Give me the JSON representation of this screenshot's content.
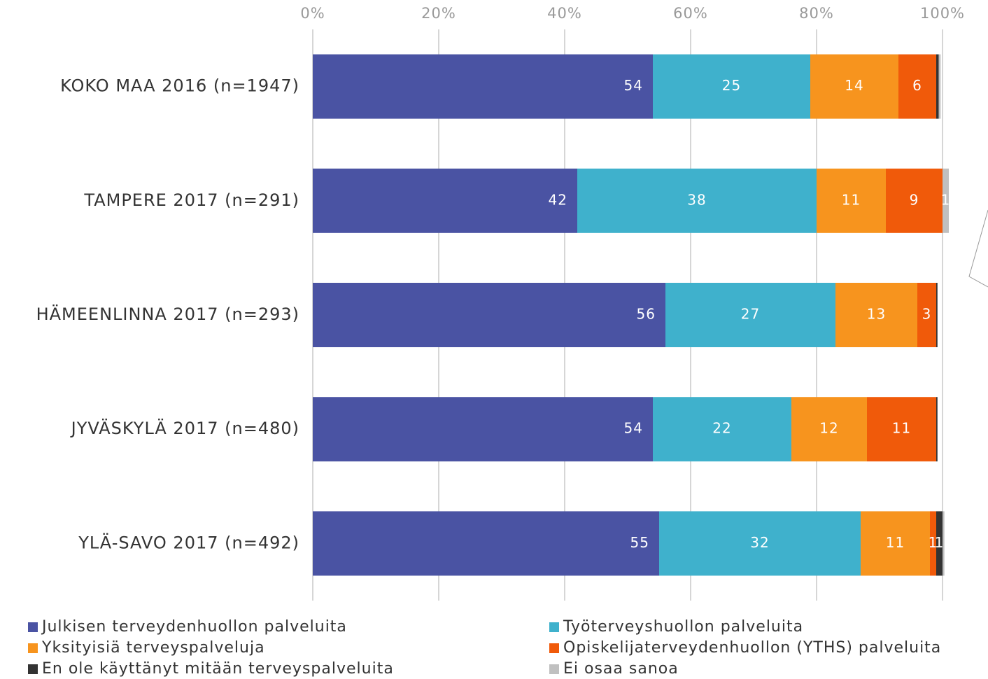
{
  "chart_data": {
    "type": "stacked_bar_horizontal",
    "categories": [
      "KOKO MAA 2016 (n=1947)",
      "TAMPERE 2017 (n=291)",
      "HÄMEENLINNA 2017 (n=293)",
      "JYVÄSKYLÄ 2017 (n=480)",
      "YLÄ-SAVO 2017 (n=492)"
    ],
    "series": [
      {
        "name": "Julkisen terveydenhuollon palveluita",
        "color": "#4a53a3",
        "values": [
          54,
          42,
          56,
          54,
          55
        ],
        "value_labels": [
          "54",
          "42",
          "56",
          "54",
          "55"
        ]
      },
      {
        "name": "Työterveyshuollon palveluita",
        "color": "#3fb1cc",
        "values": [
          25,
          38,
          27,
          22,
          32
        ],
        "value_labels": [
          "25",
          "38",
          "27",
          "22",
          "32"
        ]
      },
      {
        "name": "Yksityisiä terveyspalveluja",
        "color": "#f7941e",
        "values": [
          14,
          11,
          13,
          12,
          11
        ],
        "value_labels": [
          "14",
          "11",
          "13",
          "12",
          "11"
        ]
      },
      {
        "name": "Opiskelijaterveydenhuollon (YTHS) palveluita",
        "color": "#f05a0a",
        "values": [
          6,
          9,
          3,
          11,
          1
        ],
        "value_labels": [
          "6",
          "9",
          "3",
          "11",
          "1"
        ]
      },
      {
        "name": "En ole käyttänyt mitään terveyspalveluita",
        "color": "#333333",
        "values": [
          0.4,
          0,
          0.2,
          0.2,
          1
        ],
        "value_labels": [
          null,
          null,
          null,
          null,
          "1"
        ]
      },
      {
        "name": "Ei osaa sanoa",
        "color": "#c0c0c0",
        "values": [
          0.3,
          1,
          0,
          0,
          0.3
        ],
        "value_labels": [
          null,
          "1",
          null,
          null,
          null
        ]
      }
    ],
    "xlim": [
      0,
      100
    ],
    "xticks": [
      {
        "value": 0,
        "label": "0%"
      },
      {
        "value": 20,
        "label": "20%"
      },
      {
        "value": 40,
        "label": "40%"
      },
      {
        "value": 60,
        "label": "60%"
      },
      {
        "value": 80,
        "label": "80%"
      },
      {
        "value": 100,
        "label": "100%"
      }
    ],
    "grid": true,
    "legend": "bottom"
  }
}
